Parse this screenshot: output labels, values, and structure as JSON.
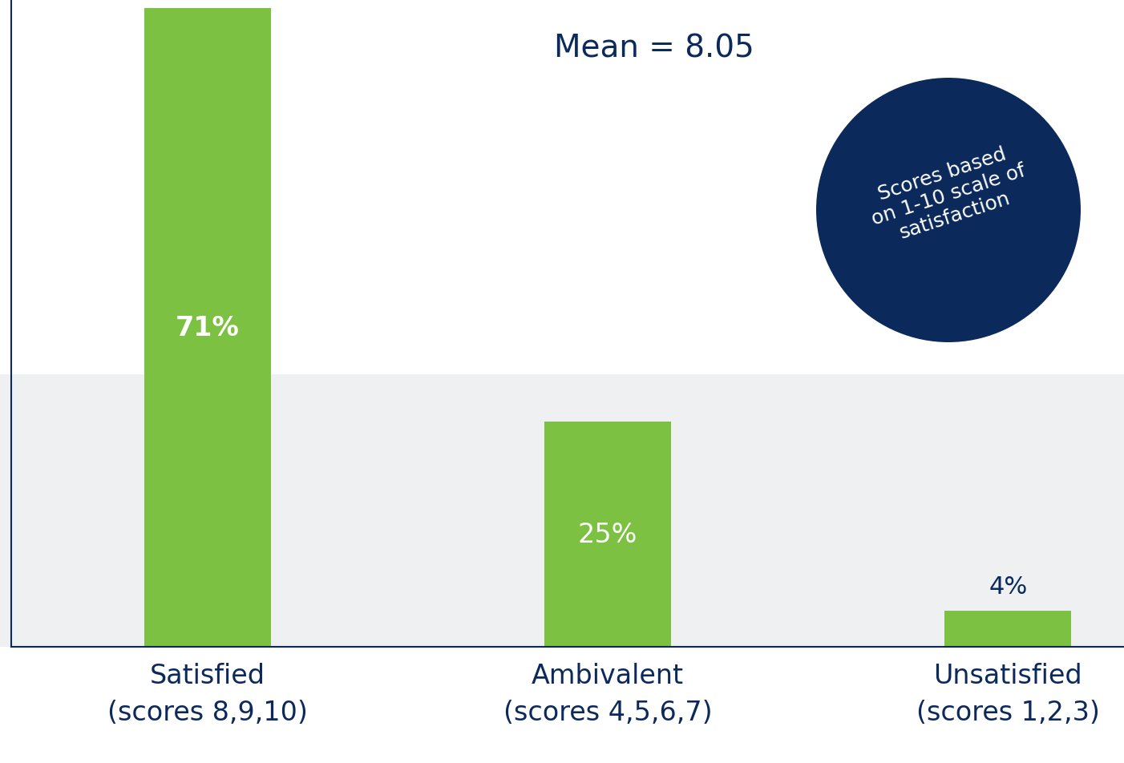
{
  "chart_data": {
    "type": "bar",
    "categories": [
      "Satisfied\n(scores 8,9,10)",
      "Ambivalent\n(scores 4,5,6,7)",
      "Unsatisfied\n(scores 1,2,3)"
    ],
    "values": [
      71,
      25,
      4
    ],
    "value_labels": [
      "71%",
      "25%",
      "4%"
    ],
    "data_labels": true,
    "color": "#7dc142",
    "ylim": [
      0,
      72
    ],
    "yticks": [],
    "tick_labels": "x",
    "grid": false,
    "annotations": [
      "Mean = 8.05",
      "Scores based\non 1-10 scale of\nsatisfaction"
    ]
  }
}
